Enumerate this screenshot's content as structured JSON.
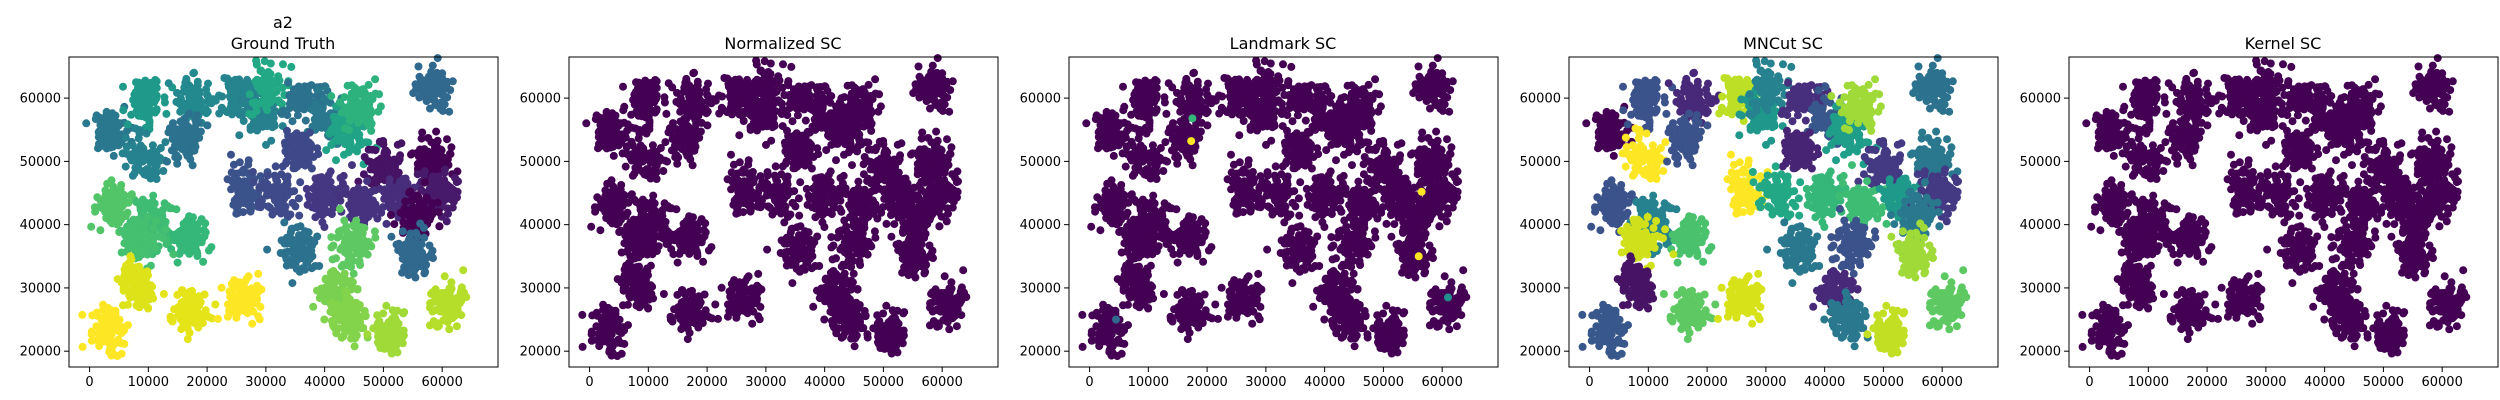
{
  "figure": {
    "suptitle": "a2",
    "background": "#ffffff"
  },
  "chart_data": [
    {
      "type": "scatter",
      "title": "Ground Truth",
      "xlabel": "",
      "ylabel": "",
      "xlim": [
        -3500,
        69500
      ],
      "ylim": [
        17500,
        66500
      ],
      "xticks": [
        "0",
        "10000",
        "20000",
        "30000",
        "40000",
        "50000",
        "60000"
      ],
      "yticks": [
        "20000",
        "30000",
        "40000",
        "50000",
        "60000"
      ],
      "grid": false,
      "colormap": "viridis",
      "cluster_labels": "ground_truth"
    },
    {
      "type": "scatter",
      "title": "Normalized SC",
      "xlabel": "",
      "ylabel": "",
      "xlim": [
        -3500,
        69500
      ],
      "ylim": [
        17500,
        66500
      ],
      "xticks": [
        "0",
        "10000",
        "20000",
        "30000",
        "40000",
        "50000",
        "60000"
      ],
      "yticks": [
        "20000",
        "30000",
        "40000",
        "50000",
        "60000"
      ],
      "grid": false,
      "colormap": "viridis",
      "cluster_labels": "single",
      "single_color": "#440154"
    },
    {
      "type": "scatter",
      "title": "Landmark SC",
      "xlabel": "",
      "ylabel": "",
      "xlim": [
        -3500,
        69500
      ],
      "ylim": [
        17500,
        66500
      ],
      "xticks": [
        "0",
        "10000",
        "20000",
        "30000",
        "40000",
        "50000",
        "60000"
      ],
      "yticks": [
        "20000",
        "30000",
        "40000",
        "50000",
        "60000"
      ],
      "grid": false,
      "colormap": "viridis",
      "cluster_labels": "single",
      "single_color": "#440154",
      "outliers": [
        {
          "x": 17500,
          "y": 56800,
          "color": "#35b779"
        },
        {
          "x": 17300,
          "y": 53200,
          "color": "#fde725"
        },
        {
          "x": 56500,
          "y": 45200,
          "color": "#fde725"
        },
        {
          "x": 56000,
          "y": 35000,
          "color": "#fde725"
        },
        {
          "x": 61000,
          "y": 28500,
          "color": "#21918c"
        },
        {
          "x": 4500,
          "y": 25000,
          "color": "#31688e"
        }
      ]
    },
    {
      "type": "scatter",
      "title": "MNCut SC",
      "xlabel": "",
      "ylabel": "",
      "xlim": [
        -3500,
        69500
      ],
      "ylim": [
        17500,
        66500
      ],
      "xticks": [
        "0",
        "10000",
        "20000",
        "30000",
        "40000",
        "50000",
        "60000"
      ],
      "yticks": [
        "20000",
        "30000",
        "40000",
        "50000",
        "60000"
      ],
      "grid": false,
      "colormap": "viridis",
      "cluster_labels": "mncut"
    },
    {
      "type": "scatter",
      "title": "Kernel SC",
      "xlabel": "",
      "ylabel": "",
      "xlim": [
        -3500,
        69500
      ],
      "ylim": [
        17500,
        66500
      ],
      "xticks": [
        "0",
        "10000",
        "20000",
        "30000",
        "40000",
        "50000",
        "60000"
      ],
      "yticks": [
        "20000",
        "30000",
        "40000",
        "50000",
        "60000"
      ],
      "grid": false,
      "colormap": "viridis",
      "cluster_labels": "single",
      "single_color": "#440154"
    }
  ],
  "cluster_centers": [
    {
      "x": 3500,
      "y": 54500,
      "gt": "#2a788e",
      "mn": "#440154"
    },
    {
      "x": 9500,
      "y": 59500,
      "gt": "#1f9a8a",
      "mn": "#3b528b"
    },
    {
      "x": 9500,
      "y": 50500,
      "gt": "#26828e",
      "mn": "#fde725"
    },
    {
      "x": 17500,
      "y": 59500,
      "gt": "#23898e",
      "mn": "#482878"
    },
    {
      "x": 16500,
      "y": 53500,
      "gt": "#2c728e",
      "mn": "#3b528b"
    },
    {
      "x": 25500,
      "y": 60500,
      "gt": "#25848e",
      "mn": "#bddf26"
    },
    {
      "x": 29000,
      "y": 57500,
      "gt": "#27808e",
      "mn": "#1f988b"
    },
    {
      "x": 30500,
      "y": 61500,
      "gt": "#22a884",
      "mn": "#26828e"
    },
    {
      "x": 36500,
      "y": 59500,
      "gt": "#2c718e",
      "mn": "#472f7d"
    },
    {
      "x": 40500,
      "y": 56500,
      "gt": "#2a788e",
      "mn": "#38588c"
    },
    {
      "x": 44000,
      "y": 54500,
      "gt": "#20a386",
      "mn": "#1f9e89"
    },
    {
      "x": 46000,
      "y": 58500,
      "gt": "#2db27d",
      "mn": "#a0da39"
    },
    {
      "x": 58500,
      "y": 61500,
      "gt": "#31688e",
      "mn": "#2c728e"
    },
    {
      "x": 58500,
      "y": 50500,
      "gt": "#440154",
      "mn": "#2a788e"
    },
    {
      "x": 50000,
      "y": 49000,
      "gt": "#471365",
      "mn": "#443983"
    },
    {
      "x": 36000,
      "y": 51500,
      "gt": "#3e4989",
      "mn": "#482475"
    },
    {
      "x": 26500,
      "y": 45500,
      "gt": "#3b528b",
      "mn": "#fde725"
    },
    {
      "x": 32000,
      "y": 44500,
      "gt": "#3e4a89",
      "mn": "#22a884"
    },
    {
      "x": 40000,
      "y": 44500,
      "gt": "#453781",
      "mn": "#35b779"
    },
    {
      "x": 46500,
      "y": 43500,
      "gt": "#46337f",
      "mn": "#3fbc73"
    },
    {
      "x": 53000,
      "y": 44000,
      "gt": "#472d7b",
      "mn": "#1f9a8a"
    },
    {
      "x": 60000,
      "y": 45000,
      "gt": "#481a6c",
      "mn": "#443983"
    },
    {
      "x": 56000,
      "y": 41000,
      "gt": "#440154",
      "mn": "#2a788e"
    },
    {
      "x": 4500,
      "y": 43000,
      "gt": "#52c569",
      "mn": "#3b528b"
    },
    {
      "x": 10500,
      "y": 40500,
      "gt": "#3fbc73",
      "mn": "#26828e"
    },
    {
      "x": 17000,
      "y": 38000,
      "gt": "#35b779",
      "mn": "#4ac16d"
    },
    {
      "x": 9000,
      "y": 37500,
      "gt": "#45bf70",
      "mn": "#d0e11c"
    },
    {
      "x": 35500,
      "y": 36000,
      "gt": "#2c728e",
      "mn": "#2a788e"
    },
    {
      "x": 45000,
      "y": 37000,
      "gt": "#5ec962",
      "mn": "#3b528b"
    },
    {
      "x": 55500,
      "y": 35500,
      "gt": "#31688e",
      "mn": "#a0da39"
    },
    {
      "x": 8000,
      "y": 30500,
      "gt": "#dde318",
      "mn": "#471365"
    },
    {
      "x": 3000,
      "y": 23000,
      "gt": "#fde725",
      "mn": "#38588c"
    },
    {
      "x": 17000,
      "y": 26500,
      "gt": "#e5e419",
      "mn": "#5ec962"
    },
    {
      "x": 26500,
      "y": 28000,
      "gt": "#fde725",
      "mn": "#d8e219"
    },
    {
      "x": 42000,
      "y": 29500,
      "gt": "#7ad151",
      "mn": "#482878"
    },
    {
      "x": 44000,
      "y": 25000,
      "gt": "#84d44b",
      "mn": "#2a788e"
    },
    {
      "x": 51000,
      "y": 23000,
      "gt": "#a0da39",
      "mn": "#c2df23"
    },
    {
      "x": 61000,
      "y": 27500,
      "gt": "#b5de2b",
      "mn": "#5ec962"
    }
  ]
}
